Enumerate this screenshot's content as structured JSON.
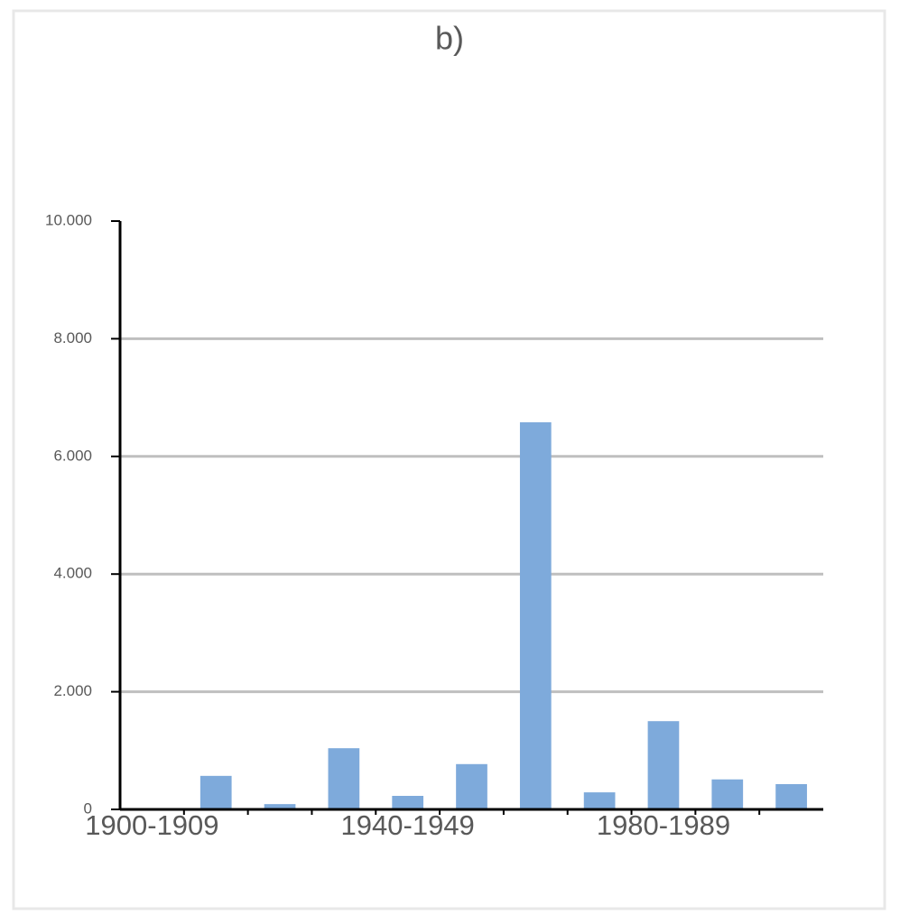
{
  "chart_data": {
    "type": "bar",
    "title": "b)",
    "categories": [
      "1900-1909",
      null,
      null,
      null,
      "1940-1949",
      null,
      null,
      null,
      "1980-1989",
      null,
      null
    ],
    "values": [
      0,
      570,
      90,
      1040,
      230,
      770,
      6580,
      290,
      1500,
      510,
      430
    ],
    "color": "#7eaadb",
    "ylim": [
      0,
      10000
    ],
    "yticks": [
      0,
      {
        "value": 2000,
        "label": "2.000"
      },
      {
        "value": 4000,
        "label": "4.000"
      },
      {
        "value": 6000,
        "label": "6.000"
      },
      {
        "value": 8000,
        "label": "8.000"
      },
      {
        "value": 10000,
        "label": "10.000"
      }
    ],
    "grid": true
  }
}
